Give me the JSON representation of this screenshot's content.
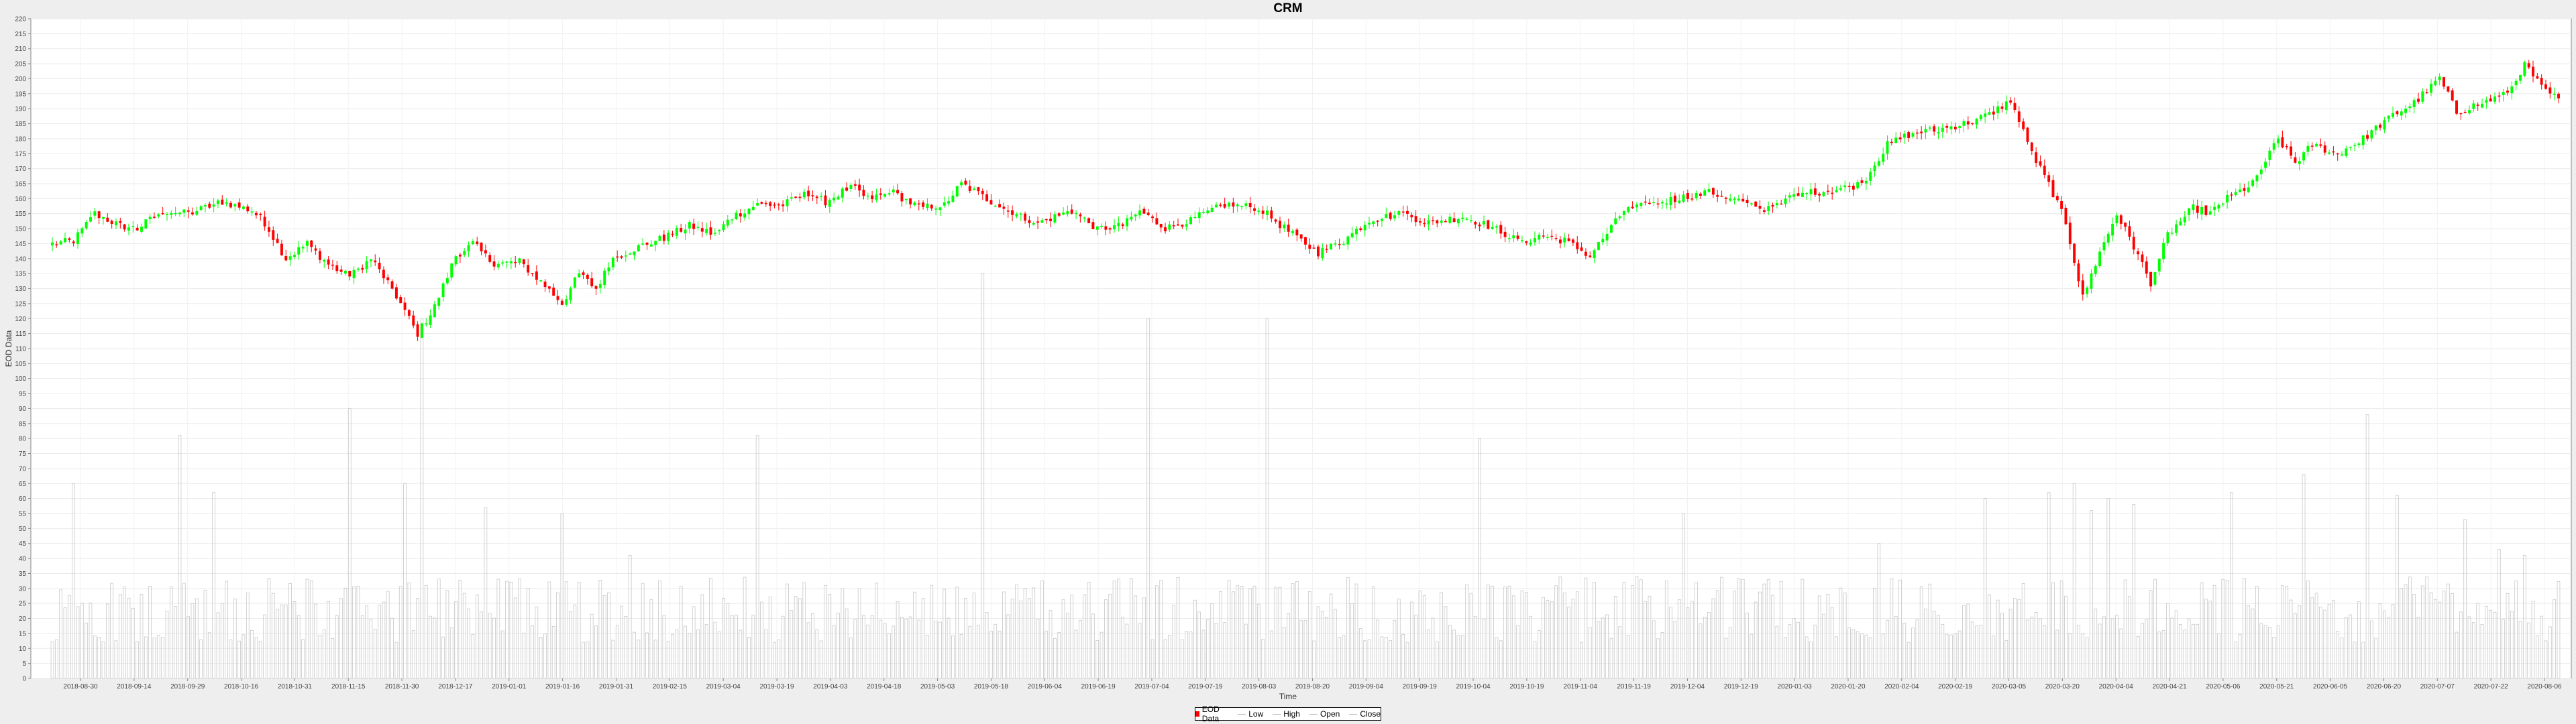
{
  "chart_data": {
    "type": "candlestick",
    "title": "CRM",
    "xlabel": "Time",
    "ylabel": "EOD Data",
    "ylim": [
      0,
      220
    ],
    "ytick_step": 5,
    "grid": true,
    "legend_position": "bottom-center",
    "xtick_labels": [
      "2018-08-30",
      "2018-09-14",
      "2018-09-29",
      "2018-10-16",
      "2018-10-31",
      "2018-11-15",
      "2018-11-30",
      "2018-12-17",
      "2019-01-01",
      "2019-01-16",
      "2019-01-31",
      "2019-02-15",
      "2019-03-04",
      "2019-03-19",
      "2019-04-03",
      "2019-04-18",
      "2019-05-03",
      "2019-05-18",
      "2019-06-04",
      "2019-06-19",
      "2019-07-04",
      "2019-07-19",
      "2019-08-03",
      "2019-08-20",
      "2019-09-04",
      "2019-09-19",
      "2019-10-04",
      "2019-10-19",
      "2019-11-04",
      "2019-11-19",
      "2019-12-04",
      "2019-12-19",
      "2020-01-03",
      "2020-01-20",
      "2020-02-04",
      "2020-02-19",
      "2020-03-05",
      "2020-03-20",
      "2020-04-04",
      "2020-04-21",
      "2020-05-06",
      "2020-05-21",
      "2020-06-05",
      "2020-06-20",
      "2020-07-07",
      "2020-07-22",
      "2020-08-06"
    ],
    "close_anchors": [
      [
        0,
        145
      ],
      [
        5,
        146
      ],
      [
        10,
        155
      ],
      [
        16,
        151
      ],
      [
        20,
        150
      ],
      [
        26,
        156
      ],
      [
        32,
        155
      ],
      [
        40,
        159
      ],
      [
        47,
        156
      ],
      [
        50,
        152
      ],
      [
        55,
        140
      ],
      [
        60,
        145
      ],
      [
        65,
        138
      ],
      [
        70,
        134
      ],
      [
        75,
        140
      ],
      [
        80,
        130
      ],
      [
        86,
        115
      ],
      [
        90,
        124
      ],
      [
        95,
        141
      ],
      [
        99,
        145
      ],
      [
        104,
        138
      ],
      [
        110,
        139
      ],
      [
        116,
        131
      ],
      [
        120,
        125
      ],
      [
        124,
        135
      ],
      [
        128,
        130
      ],
      [
        132,
        140
      ],
      [
        138,
        144
      ],
      [
        144,
        147
      ],
      [
        150,
        151
      ],
      [
        156,
        148
      ],
      [
        160,
        154
      ],
      [
        166,
        158
      ],
      [
        172,
        158
      ],
      [
        178,
        162
      ],
      [
        182,
        159
      ],
      [
        188,
        164
      ],
      [
        192,
        160
      ],
      [
        198,
        162
      ],
      [
        204,
        157
      ],
      [
        210,
        158
      ],
      [
        214,
        165
      ],
      [
        220,
        160
      ],
      [
        226,
        155
      ],
      [
        232,
        152
      ],
      [
        240,
        156
      ],
      [
        246,
        150
      ],
      [
        252,
        151
      ],
      [
        256,
        156
      ],
      [
        262,
        150
      ],
      [
        268,
        153
      ],
      [
        276,
        158
      ],
      [
        284,
        157
      ],
      [
        292,
        148
      ],
      [
        298,
        142
      ],
      [
        304,
        146
      ],
      [
        310,
        153
      ],
      [
        318,
        155
      ],
      [
        324,
        152
      ],
      [
        332,
        154
      ],
      [
        340,
        150
      ],
      [
        346,
        145
      ],
      [
        350,
        148
      ],
      [
        356,
        146
      ],
      [
        362,
        141
      ],
      [
        370,
        156
      ],
      [
        376,
        158
      ],
      [
        382,
        160
      ],
      [
        390,
        162
      ],
      [
        396,
        160
      ],
      [
        402,
        156
      ],
      [
        408,
        160
      ],
      [
        414,
        162
      ],
      [
        420,
        163
      ],
      [
        426,
        165
      ],
      [
        432,
        178
      ],
      [
        438,
        182
      ],
      [
        444,
        183
      ],
      [
        450,
        185
      ],
      [
        456,
        188
      ],
      [
        461,
        193
      ],
      [
        466,
        175
      ],
      [
        470,
        165
      ],
      [
        474,
        152
      ],
      [
        478,
        127
      ],
      [
        482,
        142
      ],
      [
        486,
        155
      ],
      [
        490,
        144
      ],
      [
        494,
        132
      ],
      [
        498,
        148
      ],
      [
        504,
        157
      ],
      [
        508,
        155
      ],
      [
        512,
        160
      ],
      [
        518,
        165
      ],
      [
        524,
        180
      ],
      [
        528,
        172
      ],
      [
        532,
        178
      ],
      [
        538,
        175
      ],
      [
        544,
        180
      ],
      [
        550,
        187
      ],
      [
        556,
        192
      ],
      [
        562,
        200
      ],
      [
        566,
        189
      ],
      [
        572,
        192
      ],
      [
        578,
        195
      ],
      [
        582,
        205
      ],
      [
        586,
        197
      ],
      [
        590,
        193
      ]
    ],
    "volume_spikes": [
      [
        5,
        65
      ],
      [
        30,
        81
      ],
      [
        38,
        62
      ],
      [
        70,
        90
      ],
      [
        83,
        65
      ],
      [
        87,
        120
      ],
      [
        102,
        57
      ],
      [
        120,
        55
      ],
      [
        136,
        41
      ],
      [
        166,
        81
      ],
      [
        219,
        135
      ],
      [
        258,
        120
      ],
      [
        286,
        120
      ],
      [
        336,
        80
      ],
      [
        384,
        55
      ],
      [
        430,
        45
      ],
      [
        455,
        60
      ],
      [
        470,
        62
      ],
      [
        476,
        65
      ],
      [
        480,
        56
      ],
      [
        484,
        60
      ],
      [
        490,
        58
      ],
      [
        513,
        62
      ],
      [
        530,
        68
      ],
      [
        545,
        88
      ],
      [
        552,
        61
      ],
      [
        568,
        53
      ],
      [
        576,
        43
      ],
      [
        582,
        41
      ]
    ],
    "series": [
      {
        "name": "EOD Data",
        "color": "#ff0000"
      },
      {
        "name": "Low",
        "color": "#b8b8b8"
      },
      {
        "name": "High",
        "color": "#b8b8b8"
      },
      {
        "name": "Open",
        "color": "#b8b8b8"
      },
      {
        "name": "Close",
        "color": "#b8b8b8"
      }
    ],
    "up_color": "#00ff00",
    "down_color": "#ff0000",
    "volume_color": "#c8c8c8"
  }
}
